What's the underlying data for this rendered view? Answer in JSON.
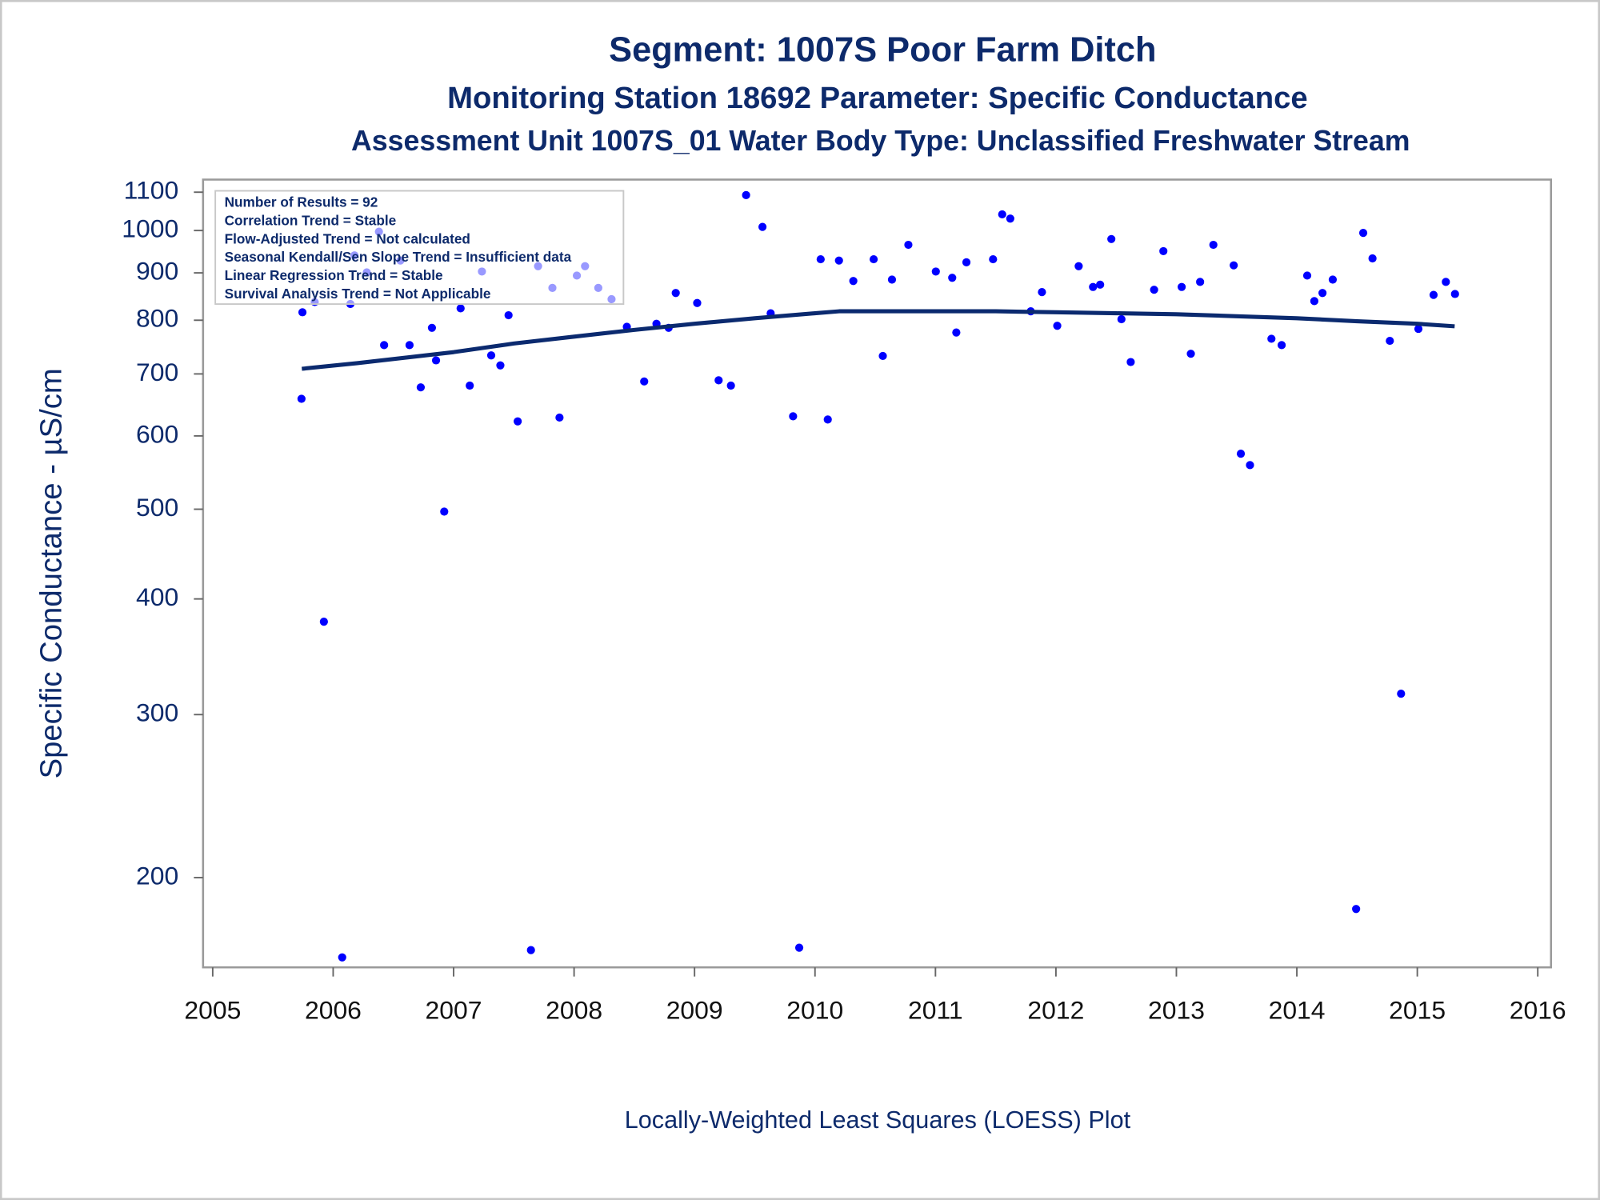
{
  "chart_data": {
    "type": "scatter",
    "title": "Segment: 1007S  Poor Farm Ditch",
    "subtitle": "Monitoring Station 18692 Parameter: Specific Conductance",
    "subtitle2": "Assessment Unit 1007S_01   Water Body Type: Unclassified Freshwater Stream",
    "y_label": "Specific Conductance -  µS/cm",
    "footnote": "Locally-Weighted Least Squares (LOESS) Plot",
    "annotations": [
      "Number of Results = 92",
      "Correlation Trend = Stable",
      "Flow-Adjusted Trend = Not calculated",
      "Seasonal Kendall/Sen Slope Trend = Insufficient data",
      "Linear Regression Trend = Stable",
      "Survival Analysis Trend = Not Applicable"
    ],
    "xlim": [
      2004.92,
      2016.11
    ],
    "xticks": [
      2005,
      2006,
      2007,
      2008,
      2009,
      2010,
      2011,
      2012,
      2013,
      2014,
      2015,
      2016
    ],
    "ylim": [
      160,
      1135
    ],
    "yticks": [
      200,
      300,
      400,
      500,
      600,
      700,
      800,
      900,
      1000,
      1100
    ],
    "ylog": true,
    "grid": false,
    "series": [
      {
        "type": "scatter",
        "color": "#0000ff",
        "x": [
          2005.745,
          2005.737,
          2005.847,
          2005.923,
          2006.075,
          2006.143,
          2006.177,
          2006.279,
          2006.38,
          2006.423,
          2006.558,
          2006.634,
          2006.727,
          2006.82,
          2006.854,
          2006.922,
          2007.058,
          2007.134,
          2007.235,
          2007.312,
          2007.388,
          2007.456,
          2007.532,
          2007.642,
          2007.701,
          2007.82,
          2007.879,
          2008.023,
          2008.091,
          2008.201,
          2008.311,
          2008.438,
          2008.582,
          2008.684,
          2008.785,
          2008.844,
          2009.022,
          2009.2,
          2009.302,
          2009.428,
          2009.564,
          2009.632,
          2009.818,
          2009.869,
          2010.047,
          2010.106,
          2010.199,
          2010.318,
          2010.487,
          2010.563,
          2010.639,
          2010.775,
          2011.003,
          2011.139,
          2011.173,
          2011.257,
          2011.478,
          2011.554,
          2011.621,
          2011.791,
          2011.884,
          2012.011,
          2012.189,
          2012.308,
          2012.367,
          2012.46,
          2012.544,
          2012.621,
          2012.815,
          2012.892,
          2013.044,
          2013.12,
          2013.197,
          2013.307,
          2013.476,
          2013.535,
          2013.611,
          2013.789,
          2013.874,
          2014.086,
          2014.145,
          2014.213,
          2014.298,
          2014.492,
          2014.551,
          2014.628,
          2014.772,
          2014.865,
          2015.009,
          2015.135,
          2015.237,
          2015.313
        ],
        "values": [
          816,
          658,
          837,
          378,
          164,
          833,
          940,
          901,
          997,
          752,
          928,
          752,
          677,
          785,
          724,
          497,
          824,
          680,
          903,
          733,
          715,
          810,
          622,
          167,
          915,
          867,
          628,
          894,
          915,
          867,
          843,
          787,
          687,
          793,
          785,
          856,
          835,
          689,
          680,
          1092,
          1009,
          814,
          630,
          168,
          931,
          625,
          928,
          882,
          931,
          732,
          885,
          965,
          903,
          889,
          776,
          924,
          931,
          1041,
          1030,
          818,
          858,
          789,
          915,
          869,
          874,
          979,
          802,
          721,
          863,
          950,
          869,
          736,
          880,
          965,
          917,
          574,
          558,
          764,
          752,
          894,
          839,
          856,
          885,
          185,
          994,
          933,
          760,
          316,
          783,
          852,
          880,
          854
        ]
      },
      {
        "type": "line",
        "color": "#0b2a6f",
        "x": [
          2005.74,
          2006.2,
          2007.0,
          2007.5,
          2008.0,
          2008.5,
          2009.0,
          2009.5,
          2010.0,
          2010.2,
          2011.0,
          2011.5,
          2012.0,
          2012.5,
          2013.0,
          2013.5,
          2014.0,
          2014.5,
          2015.0,
          2015.31
        ],
        "values": [
          709,
          719,
          739,
          755,
          768,
          781,
          793,
          804,
          814,
          818,
          818,
          818,
          816,
          814,
          812,
          808,
          804,
          798,
          793,
          788
        ]
      }
    ]
  }
}
